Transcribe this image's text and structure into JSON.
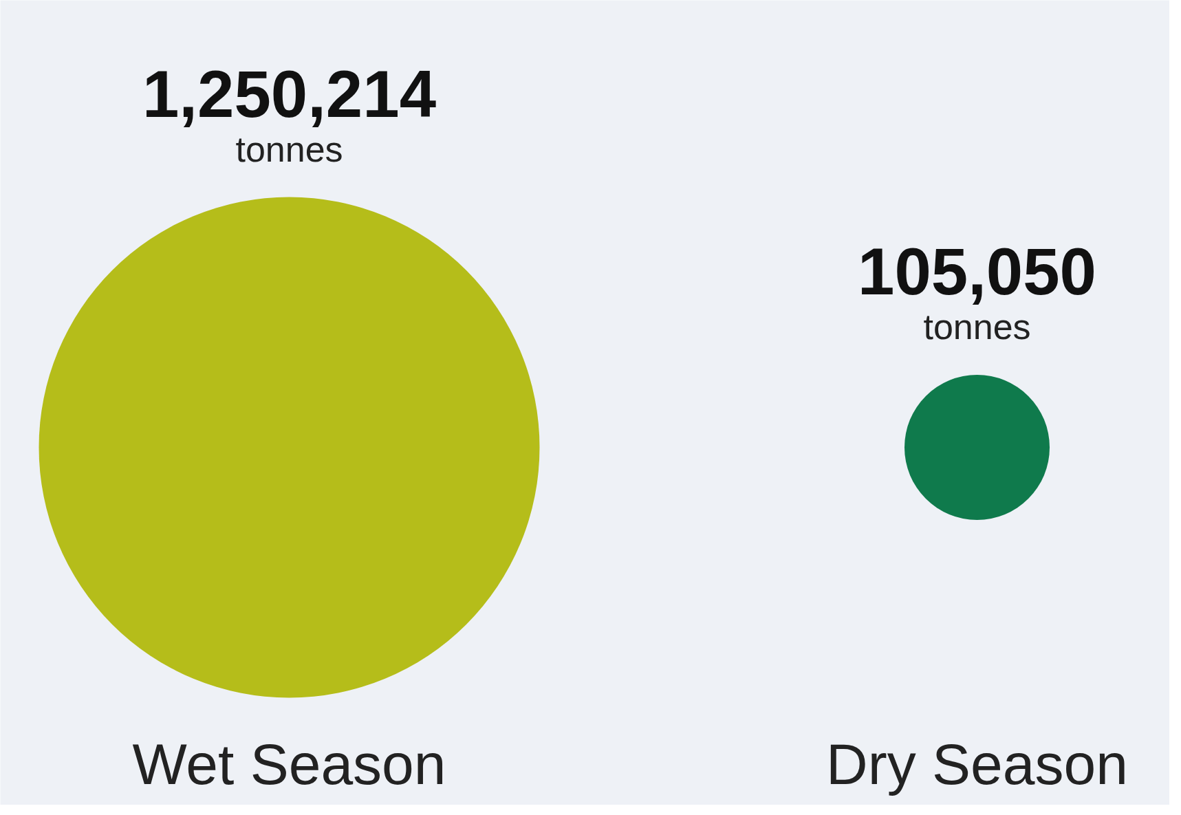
{
  "chart_data": {
    "type": "other",
    "categories": [
      "Wet Season",
      "Dry Season"
    ],
    "values": [
      1250214,
      105050
    ],
    "value_labels": [
      "1,250,214",
      "105,050"
    ],
    "colors": [
      "#b5bd1a",
      "#0f7a4c"
    ],
    "annotations": [
      {
        "text": "tonnes",
        "x": "Wet Season"
      },
      {
        "text": "tonnes",
        "x": "Dry Season"
      }
    ]
  }
}
